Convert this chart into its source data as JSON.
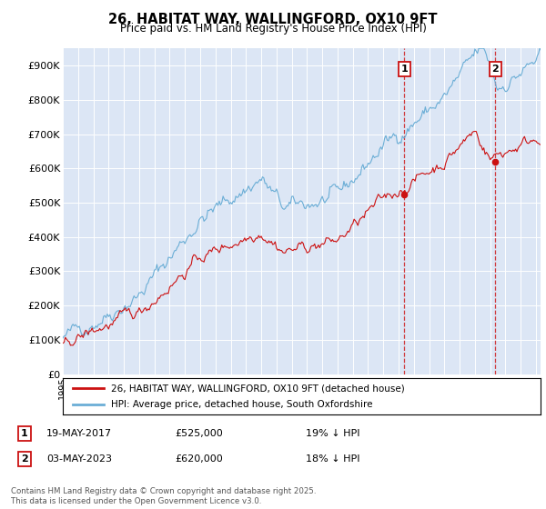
{
  "title_line1": "26, HABITAT WAY, WALLINGFORD, OX10 9FT",
  "title_line2": "Price paid vs. HM Land Registry's House Price Index (HPI)",
  "ylim": [
    0,
    950000
  ],
  "yticks": [
    0,
    100000,
    200000,
    300000,
    400000,
    500000,
    600000,
    700000,
    800000,
    900000
  ],
  "ytick_labels": [
    "£0",
    "£100K",
    "£200K",
    "£300K",
    "£400K",
    "£500K",
    "£600K",
    "£700K",
    "£800K",
    "£900K"
  ],
  "hpi_color": "#6baed6",
  "price_color": "#cc1111",
  "transaction1_x": 2017.37,
  "transaction1_price": 525000,
  "transaction1_date": "19-MAY-2017",
  "transaction1_pct": "19% ↓ HPI",
  "transaction2_x": 2023.34,
  "transaction2_price": 620000,
  "transaction2_date": "03-MAY-2023",
  "transaction2_pct": "18% ↓ HPI",
  "legend_label1": "26, HABITAT WAY, WALLINGFORD, OX10 9FT (detached house)",
  "legend_label2": "HPI: Average price, detached house, South Oxfordshire",
  "footer": "Contains HM Land Registry data © Crown copyright and database right 2025.\nThis data is licensed under the Open Government Licence v3.0.",
  "background_color": "#e8eef8",
  "plot_bgcolor": "#dce6f5"
}
